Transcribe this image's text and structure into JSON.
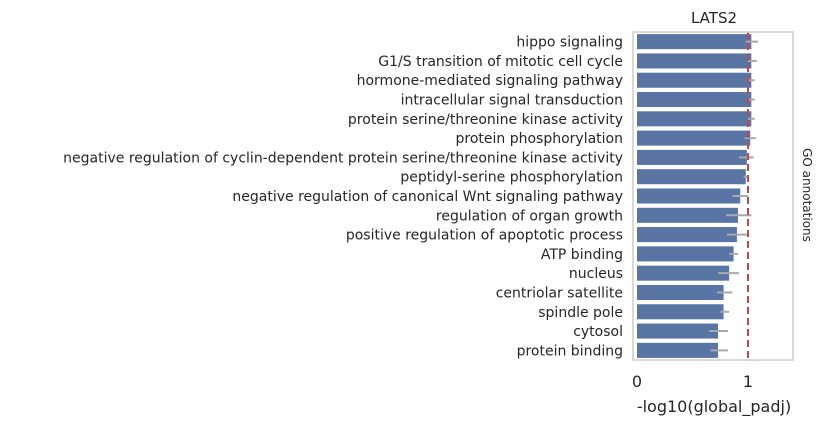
{
  "chart_data": {
    "type": "bar",
    "orientation": "horizontal",
    "title": "LATS2",
    "xlabel": "-log10(global_padj)",
    "ylabel": "GO annotations",
    "xlim": [
      0,
      1.4
    ],
    "xticks": [
      0,
      1
    ],
    "grid": false,
    "reference_line": {
      "x": 1.0,
      "color": "#c9434b",
      "style": "dashed"
    },
    "bar_color": "#5875a4",
    "error_color": "#a9a9a9",
    "categories": [
      "hippo signaling",
      "G1/S transition of mitotic cell cycle",
      "hormone-mediated signaling pathway",
      "intracellular signal transduction",
      "protein serine/threonine kinase activity",
      "protein phosphorylation",
      "negative regulation of cyclin-dependent protein serine/threonine kinase activity",
      "peptidyl-serine phosphorylation",
      "negative regulation of canonical Wnt signaling pathway",
      "regulation of organ growth",
      "positive regulation of apoptotic process",
      "ATP binding",
      "nucleus",
      "centriolar satellite",
      "spindle pole",
      "cytosol",
      "protein binding"
    ],
    "values": [
      1.03,
      1.03,
      1.03,
      1.03,
      1.03,
      1.02,
      0.99,
      0.98,
      0.93,
      0.91,
      0.9,
      0.87,
      0.83,
      0.78,
      0.78,
      0.73,
      0.73
    ],
    "error_low": [
      0.98,
      0.99,
      1.0,
      0.99,
      1.0,
      0.97,
      0.92,
      0.96,
      0.86,
      0.8,
      0.81,
      0.83,
      0.73,
      0.72,
      0.75,
      0.65,
      0.66
    ],
    "error_high": [
      1.09,
      1.08,
      1.06,
      1.06,
      1.06,
      1.07,
      1.05,
      1.0,
      1.0,
      1.03,
      0.99,
      0.91,
      0.92,
      0.86,
      0.83,
      0.82,
      0.82
    ]
  }
}
